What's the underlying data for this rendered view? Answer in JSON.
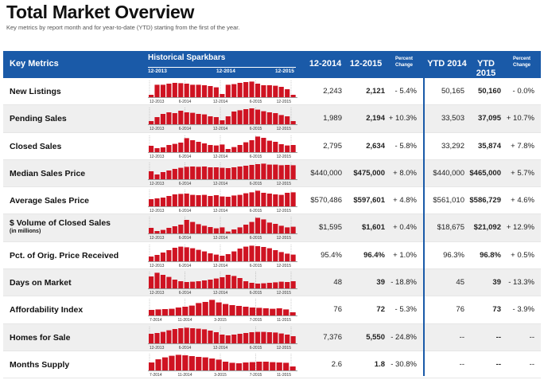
{
  "title": "Total Market Overview",
  "subtitle": "Key metrics by report month and for year-to-date (YTD) starting from the first of the year.",
  "header": {
    "key_metrics": "Key Metrics",
    "sparkbars": "Historical Sparkbars",
    "sparkbar_dates": [
      "12-2013",
      "12-2014",
      "12-2015"
    ],
    "col1": "12-2014",
    "col2": "12-2015",
    "pct1": "Percent Change",
    "ytd1": "YTD 2014",
    "ytd2": "YTD 2015",
    "pct2": "Percent Change"
  },
  "colors": {
    "header": "#1a5aa8",
    "bar": "#cf1322",
    "alt_row": "#efefef"
  },
  "rows": [
    {
      "label": "New Listings",
      "sub": "",
      "v1": "2,243",
      "v2": "2,121",
      "pc": "- 5.4%",
      "y1": "50,165",
      "y2": "50,160",
      "ypc": "- 0.0%",
      "ticks": [
        "12-2013",
        "6-2014",
        "12-2014",
        "6-2015",
        "12-2015"
      ],
      "bars": [
        0.15,
        0.78,
        0.78,
        0.85,
        0.9,
        0.88,
        0.85,
        0.78,
        0.78,
        0.75,
        0.7,
        0.62,
        0.2,
        0.78,
        0.82,
        0.9,
        0.95,
        0.98,
        0.85,
        0.75,
        0.75,
        0.72,
        0.65,
        0.5,
        0.15
      ]
    },
    {
      "label": "Pending Sales",
      "sub": "",
      "v1": "1,989",
      "v2": "2,194",
      "pc": "+ 10.3%",
      "y1": "33,503",
      "y2": "37,095",
      "ypc": "+ 10.7%",
      "ticks": [
        "12-2013",
        "6-2014",
        "12-2014",
        "6-2015",
        "12-2015"
      ],
      "bars": [
        0.2,
        0.45,
        0.65,
        0.75,
        0.7,
        0.85,
        0.75,
        0.72,
        0.65,
        0.62,
        0.5,
        0.45,
        0.25,
        0.5,
        0.8,
        0.88,
        0.95,
        1.0,
        0.92,
        0.82,
        0.75,
        0.7,
        0.58,
        0.5,
        0.2
      ]
    },
    {
      "label": "Closed Sales",
      "sub": "",
      "v1": "2,795",
      "v2": "2,634",
      "pc": "- 5.8%",
      "y1": "33,292",
      "y2": "35,874",
      "ypc": "+ 7.8%",
      "ticks": [
        "12-2013",
        "6-2014",
        "12-2014",
        "6-2015",
        "12-2015"
      ],
      "bars": [
        0.4,
        0.25,
        0.3,
        0.45,
        0.52,
        0.6,
        0.88,
        0.75,
        0.65,
        0.55,
        0.45,
        0.42,
        0.48,
        0.2,
        0.32,
        0.45,
        0.62,
        0.75,
        0.98,
        0.9,
        0.72,
        0.65,
        0.5,
        0.42,
        0.45
      ]
    },
    {
      "label": "Median Sales Price",
      "sub": "",
      "v1": "$440,000",
      "v2": "$475,000",
      "pc": "+ 8.0%",
      "y1": "$440,000",
      "y2": "$465,000",
      "ypc": "+ 5.7%",
      "ticks": [
        "12-2013",
        "6-2014",
        "12-2014",
        "6-2015",
        "12-2015"
      ],
      "bars": [
        0.5,
        0.3,
        0.45,
        0.55,
        0.65,
        0.72,
        0.78,
        0.8,
        0.78,
        0.8,
        0.75,
        0.75,
        0.72,
        0.7,
        0.75,
        0.8,
        0.85,
        0.9,
        0.95,
        0.98,
        0.92,
        0.92,
        0.88,
        0.9,
        0.88
      ]
    },
    {
      "label": "Average Sales Price",
      "sub": "",
      "v1": "$570,486",
      "v2": "$597,601",
      "pc": "+ 4.8%",
      "y1": "$561,010",
      "y2": "$586,729",
      "ypc": "+ 4.6%",
      "ticks": [
        "12-2013",
        "6-2014",
        "12-2014",
        "6-2015",
        "12-2015"
      ],
      "bars": [
        0.45,
        0.5,
        0.55,
        0.65,
        0.75,
        0.78,
        0.8,
        0.72,
        0.7,
        0.72,
        0.65,
        0.7,
        0.62,
        0.6,
        0.68,
        0.72,
        0.82,
        0.88,
        0.98,
        0.85,
        0.8,
        0.75,
        0.72,
        0.85,
        0.88
      ]
    },
    {
      "label": "$ Volume of Closed Sales",
      "sub": "(in millions)",
      "v1": "$1,595",
      "v2": "$1,601",
      "pc": "+ 0.4%",
      "y1": "$18,675",
      "y2": "$21,092",
      "ypc": "+ 12.9%",
      "ticks": [
        "12-2013",
        "6-2014",
        "12-2014",
        "6-2015",
        "12-2015"
      ],
      "bars": [
        0.35,
        0.15,
        0.22,
        0.35,
        0.45,
        0.55,
        0.85,
        0.72,
        0.58,
        0.48,
        0.4,
        0.32,
        0.38,
        0.12,
        0.25,
        0.38,
        0.55,
        0.72,
        0.98,
        0.88,
        0.68,
        0.6,
        0.48,
        0.38,
        0.42
      ]
    },
    {
      "label": "Pct. of Orig. Price Received",
      "sub": "",
      "v1": "95.4%",
      "v2": "96.4%",
      "pc": "+ 1.0%",
      "y1": "96.3%",
      "y2": "96.8%",
      "ypc": "+ 0.5%",
      "ticks": [
        "12-2013",
        "6-2014",
        "12-2014",
        "6-2015",
        "12-2015"
      ],
      "bars": [
        0.3,
        0.4,
        0.55,
        0.7,
        0.85,
        0.92,
        0.88,
        0.82,
        0.72,
        0.62,
        0.5,
        0.42,
        0.35,
        0.45,
        0.62,
        0.8,
        0.92,
        0.98,
        0.95,
        0.9,
        0.82,
        0.7,
        0.58,
        0.48,
        0.42
      ]
    },
    {
      "label": "Days on Market",
      "sub": "",
      "v1": "48",
      "v2": "39",
      "pc": "- 18.8%",
      "y1": "45",
      "y2": "39",
      "ypc": "- 13.3%",
      "ticks": [
        "12-2013",
        "6-2014",
        "12-2014",
        "6-2015",
        "12-2015"
      ],
      "bars": [
        0.75,
        0.98,
        0.85,
        0.72,
        0.55,
        0.45,
        0.4,
        0.42,
        0.45,
        0.5,
        0.55,
        0.62,
        0.7,
        0.85,
        0.78,
        0.65,
        0.45,
        0.35,
        0.3,
        0.32,
        0.35,
        0.38,
        0.42,
        0.4,
        0.45
      ]
    },
    {
      "label": "Affordability Index",
      "sub": "",
      "v1": "76",
      "v2": "72",
      "pc": "- 5.3%",
      "y1": "76",
      "y2": "73",
      "ypc": "- 3.9%",
      "ticks": [
        "7-2014",
        "11-2014",
        "3-2015",
        "7-2015",
        "11-2015"
      ],
      "bars": [
        0.35,
        0.38,
        0.4,
        0.42,
        0.5,
        0.55,
        0.62,
        0.78,
        0.85,
        0.98,
        0.82,
        0.72,
        0.65,
        0.6,
        0.55,
        0.5,
        0.48,
        0.45,
        0.42,
        0.45,
        0.38,
        0.2
      ]
    },
    {
      "label": "Homes for Sale",
      "sub": "",
      "v1": "7,376",
      "v2": "5,550",
      "pc": "- 24.8%",
      "y1": "--",
      "y2": "--",
      "ypc": "--",
      "ticks": [
        "12-2013",
        "6-2014",
        "12-2014",
        "6-2015",
        "12-2015"
      ],
      "bars": [
        0.6,
        0.65,
        0.72,
        0.82,
        0.9,
        0.95,
        0.98,
        0.95,
        0.92,
        0.88,
        0.8,
        0.7,
        0.55,
        0.5,
        0.55,
        0.6,
        0.65,
        0.7,
        0.72,
        0.72,
        0.7,
        0.68,
        0.62,
        0.55,
        0.45
      ]
    },
    {
      "label": "Months Supply",
      "sub": "",
      "v1": "2.6",
      "v2": "1.8",
      "pc": "- 30.8%",
      "y1": "--",
      "y2": "--",
      "ypc": "--",
      "ticks": [
        "7-2014",
        "11-2014",
        "3-2015",
        "7-2015",
        "11-2015"
      ],
      "bars": [
        0.5,
        0.7,
        0.82,
        0.92,
        0.98,
        0.95,
        0.9,
        0.85,
        0.82,
        0.75,
        0.68,
        0.55,
        0.48,
        0.45,
        0.5,
        0.52,
        0.55,
        0.55,
        0.52,
        0.5,
        0.48,
        0.25
      ]
    }
  ]
}
